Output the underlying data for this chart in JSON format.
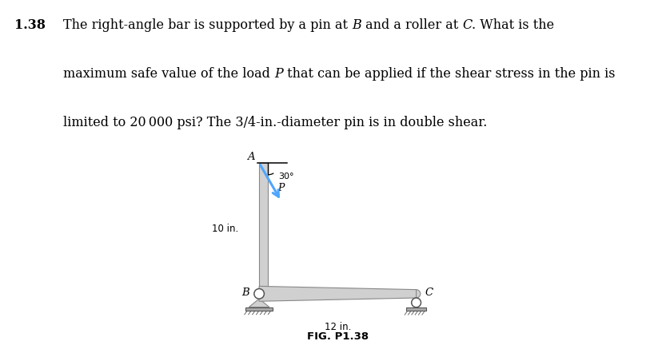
{
  "fig_label": "FIG. P1.38",
  "dim_vertical": "10 in.",
  "dim_horizontal": "12 in.",
  "angle_label": "30°",
  "load_label": "P",
  "point_A": "A",
  "point_B": "B",
  "point_C": "C",
  "bar_color": "#d0d0d0",
  "bar_edge_color": "#888888",
  "arrow_color": "#4da6ff",
  "ground_color": "#aaaaaa",
  "background": "#ffffff",
  "title_num": "1.38",
  "title_parts": [
    {
      "text": "The right-angle bar is supported by a pin at ",
      "style": "normal"
    },
    {
      "text": "B",
      "style": "italic"
    },
    {
      "text": " and a roller at ",
      "style": "normal"
    },
    {
      "text": "C",
      "style": "italic"
    },
    {
      "text": ". What is the",
      "style": "normal"
    }
  ],
  "title_line2": "maximum safe value of the load ",
  "title_line2b": "P",
  "title_line2c": " that can be applied if the shear stress in the pin is",
  "title_line3": "limited to 20 000 psi? The 3/4-in.-diameter pin is in double shear."
}
